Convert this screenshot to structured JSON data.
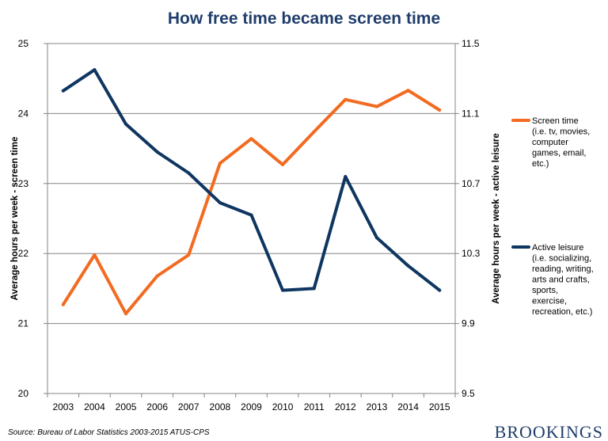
{
  "chart_data": {
    "type": "line",
    "title": "How free time became screen time",
    "categories": [
      "2003",
      "2004",
      "2005",
      "2006",
      "2007",
      "2008",
      "2009",
      "2010",
      "2011",
      "2012",
      "2013",
      "2014",
      "2015"
    ],
    "ylabel_left": "Average hours per week - screen time",
    "ylabel_right": "Average hours per week - active leisure",
    "ylim_left": [
      20,
      25
    ],
    "yticks_left": [
      "20",
      "21",
      "22",
      "23",
      "24",
      "25"
    ],
    "ylim_right": [
      9.5,
      11.5
    ],
    "yticks_right": [
      "9.5",
      "9.9",
      "10.3",
      "10.7",
      "11.1",
      "11.5"
    ],
    "grid": true,
    "series": [
      {
        "name": "Screen time",
        "legend_lines": [
          "Screen time",
          "(i.e. tv, movies,",
          "computer",
          "games, email,",
          "etc.)"
        ],
        "axis": "left",
        "color": "#f26b21",
        "values": [
          21.27,
          21.98,
          21.14,
          21.68,
          21.98,
          23.29,
          23.64,
          23.27,
          23.74,
          24.2,
          24.1,
          24.33,
          24.05
        ]
      },
      {
        "name": "Active leisure",
        "legend_lines": [
          "Active leisure",
          "(i.e. socializing,",
          "reading, writing,",
          "arts and crafts,",
          "sports,",
          "exercise,",
          "recreation, etc.)"
        ],
        "axis": "right",
        "color": "#0f3661",
        "values": [
          11.23,
          11.35,
          11.04,
          10.88,
          10.76,
          10.59,
          10.52,
          10.09,
          10.1,
          10.74,
          10.39,
          10.23,
          10.09
        ]
      }
    ]
  },
  "footer": {
    "source": "Source: Bureau of Labor Statistics 2003-2015 ATUS-CPS",
    "logo": "BROOKINGS"
  }
}
